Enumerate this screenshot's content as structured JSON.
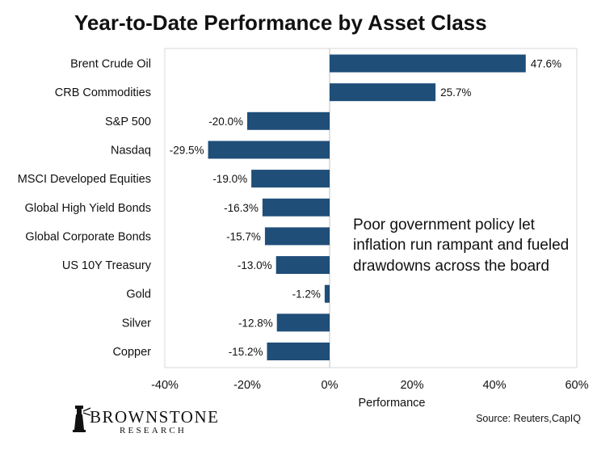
{
  "chart_data": {
    "type": "bar",
    "orientation": "horizontal",
    "title": "Year-to-Date Performance by Asset Class",
    "xlabel": "Performance",
    "ylabel": "",
    "xlim": [
      -40,
      60
    ],
    "x_ticks": [
      -40,
      -20,
      0,
      20,
      40,
      60
    ],
    "x_tick_labels": [
      "-40%",
      "-20%",
      "0%",
      "20%",
      "40%",
      "60%"
    ],
    "grid": false,
    "bar_color": "#1F4E79",
    "categories": [
      "Brent Crude Oil",
      "CRB Commodities",
      "S&P 500",
      "Nasdaq",
      "MSCI Developed Equities",
      "Global High Yield Bonds",
      "Global Corporate Bonds",
      "US 10Y Treasury",
      "Gold",
      "Silver",
      "Copper"
    ],
    "values": [
      47.6,
      25.7,
      -20.0,
      -29.5,
      -19.0,
      -16.3,
      -15.7,
      -13.0,
      -1.2,
      -12.8,
      -15.2
    ],
    "value_labels": [
      "47.6%",
      "25.7%",
      "-20.0%",
      "-29.5%",
      "-19.0%",
      "-16.3%",
      "-15.7%",
      "-13.0%",
      "-1.2%",
      "-12.8%",
      "-15.2%"
    ],
    "annotation": [
      "Poor government policy let",
      "inflation run rampant and fueled",
      "drawdowns across the board"
    ]
  },
  "footer": {
    "source": "Source: Reuters,CapIQ",
    "logo_main": "BROWNSTONE",
    "logo_sub": "RESEARCH"
  }
}
